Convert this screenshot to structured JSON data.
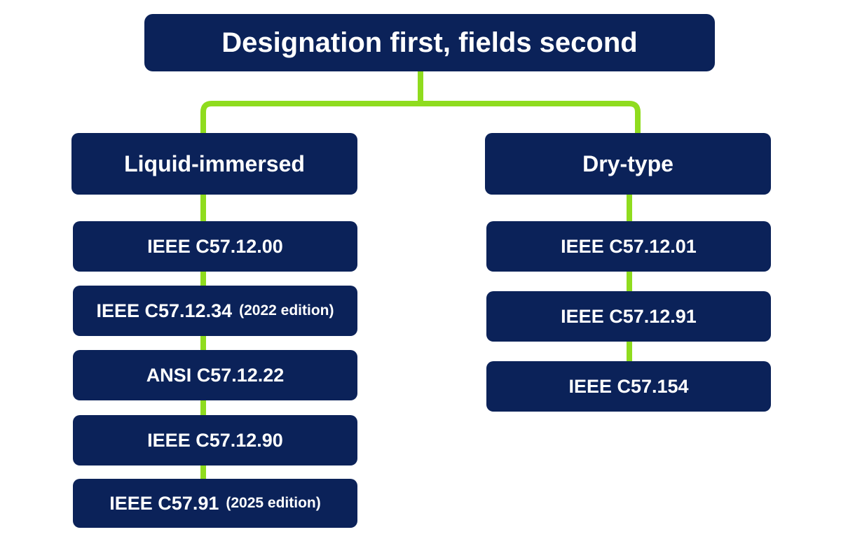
{
  "title": "Designation first, fields second",
  "colors": {
    "node_fill": "#0b2259",
    "node_text": "#ffffff",
    "connector": "#8fdc1e",
    "background": "#ffffff"
  },
  "branches": [
    {
      "label": "Liquid-immersed",
      "standards": [
        {
          "designation": "IEEE C57.12.00",
          "edition": ""
        },
        {
          "designation": "IEEE C57.12.34",
          "edition": "(2022 edition)"
        },
        {
          "designation": "ANSI C57.12.22",
          "edition": ""
        },
        {
          "designation": "IEEE C57.12.90",
          "edition": ""
        },
        {
          "designation": "IEEE C57.91",
          "edition": "(2025 edition)"
        }
      ]
    },
    {
      "label": "Dry-type",
      "standards": [
        {
          "designation": "IEEE C57.12.01",
          "edition": ""
        },
        {
          "designation": "IEEE C57.12.91",
          "edition": ""
        },
        {
          "designation": "IEEE C57.154",
          "edition": ""
        }
      ]
    }
  ]
}
